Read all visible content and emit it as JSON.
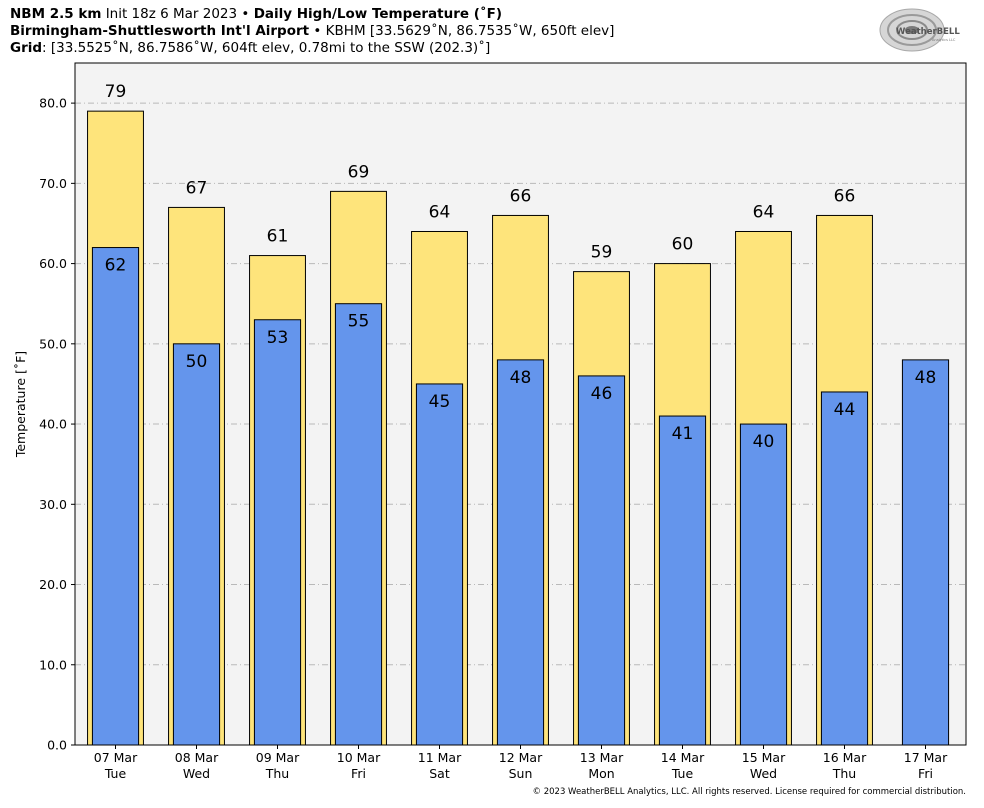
{
  "header": {
    "line1": {
      "model": "NBM 2.5 km",
      "init": "Init 18z 6 Mar 2023",
      "sep": "•",
      "product": "Daily High/Low Temperature (˚F)"
    },
    "line2": {
      "station": "Birmingham-Shuttlesworth Int'l Airport",
      "sep": "•",
      "details": "KBHM [33.5629˚N, 86.7535˚W, 650ft elev]"
    },
    "line3": {
      "label": "Grid",
      "details": ": [33.5525˚N, 86.7586˚W, 604ft elev, 0.78mi to the SSW (202.3)˚]"
    }
  },
  "logo": {
    "text": "WeatherBELL",
    "subtext": "Analytics LLC"
  },
  "copyright": "© 2023 WeatherBELL Analytics, LLC. All rights reserved. License required for commercial distribution.",
  "colors": {
    "high_bar": "#fee47b",
    "low_bar": "#6495ec",
    "plot_bg": "#f3f3f3",
    "grid": "#b9b9b9"
  },
  "chart_data": {
    "type": "bar",
    "ylabel": "Temperature [˚F]",
    "ylim": [
      0,
      85
    ],
    "yticks": [
      "0.0",
      "10.0",
      "20.0",
      "30.0",
      "40.0",
      "50.0",
      "60.0",
      "70.0",
      "80.0"
    ],
    "categories": [
      [
        "07 Mar",
        "Tue"
      ],
      [
        "08 Mar",
        "Wed"
      ],
      [
        "09 Mar",
        "Thu"
      ],
      [
        "10 Mar",
        "Fri"
      ],
      [
        "11 Mar",
        "Sat"
      ],
      [
        "12 Mar",
        "Sun"
      ],
      [
        "13 Mar",
        "Mon"
      ],
      [
        "14 Mar",
        "Tue"
      ],
      [
        "15 Mar",
        "Wed"
      ],
      [
        "16 Mar",
        "Thu"
      ],
      [
        "17 Mar",
        "Fri"
      ]
    ],
    "grid": true,
    "series": [
      {
        "values": [
          79,
          67,
          61,
          69,
          64,
          66,
          59,
          60,
          64,
          66,
          null
        ],
        "data_labels": [
          "79",
          "67",
          "61",
          "69",
          "64",
          "66",
          "59",
          "60",
          "64",
          "66",
          ""
        ]
      },
      {
        "values": [
          62,
          50,
          53,
          55,
          45,
          48,
          46,
          41,
          40,
          44,
          48
        ],
        "data_labels": [
          "62",
          "50",
          "53",
          "55",
          "45",
          "48",
          "46",
          "41",
          "40",
          "44",
          "48"
        ]
      }
    ]
  }
}
